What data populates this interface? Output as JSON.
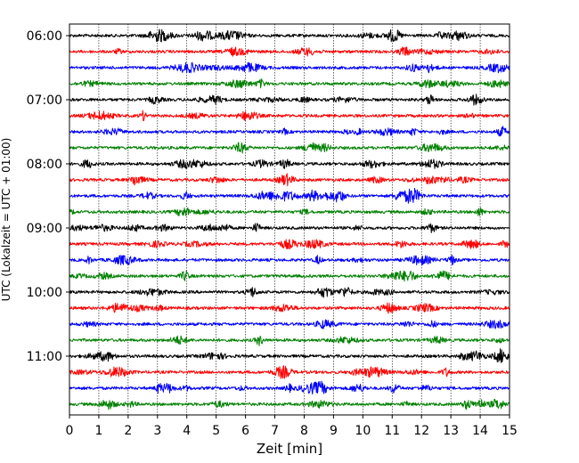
{
  "chart_data": {
    "type": "line",
    "title": "",
    "xlabel": "Zeit  [min]",
    "ylabel": "UTC (Lokalzeit = UTC + 01:00)",
    "xlim": [
      0,
      15
    ],
    "x_ticks": [
      0,
      1,
      2,
      3,
      4,
      5,
      6,
      7,
      8,
      9,
      10,
      11,
      12,
      13,
      14,
      15
    ],
    "x_tick_labels": [
      "0",
      "1",
      "2",
      "3",
      "4",
      "5",
      "6",
      "7",
      "8",
      "9",
      "10",
      "11",
      "12",
      "13",
      "14",
      "15"
    ],
    "y_ticks": [
      "06:00",
      "07:00",
      "08:00",
      "09:00",
      "10:00",
      "11:00"
    ],
    "x_grid": true,
    "y_grid": false,
    "trace_interval_minutes": 15,
    "trace_start": "06:00",
    "trace_colors": [
      "#000000",
      "#ff0000",
      "#0000ff",
      "#008000"
    ],
    "series": [
      {
        "start": "06:00",
        "color": "#000000"
      },
      {
        "start": "06:15",
        "color": "#ff0000"
      },
      {
        "start": "06:30",
        "color": "#0000ff"
      },
      {
        "start": "06:45",
        "color": "#008000"
      },
      {
        "start": "07:00",
        "color": "#000000"
      },
      {
        "start": "07:15",
        "color": "#ff0000"
      },
      {
        "start": "07:30",
        "color": "#0000ff"
      },
      {
        "start": "07:45",
        "color": "#008000"
      },
      {
        "start": "08:00",
        "color": "#000000"
      },
      {
        "start": "08:15",
        "color": "#ff0000"
      },
      {
        "start": "08:30",
        "color": "#0000ff"
      },
      {
        "start": "08:45",
        "color": "#008000"
      },
      {
        "start": "09:00",
        "color": "#000000"
      },
      {
        "start": "09:15",
        "color": "#ff0000"
      },
      {
        "start": "09:30",
        "color": "#0000ff"
      },
      {
        "start": "09:45",
        "color": "#008000"
      },
      {
        "start": "10:00",
        "color": "#000000"
      },
      {
        "start": "10:15",
        "color": "#ff0000"
      },
      {
        "start": "10:30",
        "color": "#0000ff"
      },
      {
        "start": "10:45",
        "color": "#008000"
      },
      {
        "start": "11:00",
        "color": "#000000"
      },
      {
        "start": "11:15",
        "color": "#ff0000"
      },
      {
        "start": "11:30",
        "color": "#0000ff"
      },
      {
        "start": "11:45",
        "color": "#008000"
      }
    ]
  }
}
